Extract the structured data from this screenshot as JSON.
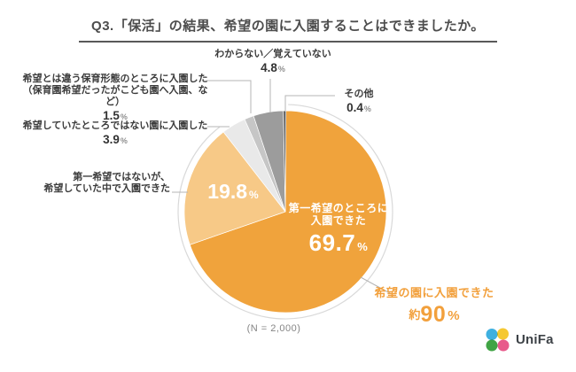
{
  "title": "Q3.「保活」の結果、希望の園に入園することはできましたか。",
  "note": "(N = 2,000)",
  "percent_sign": "%",
  "chart_data": {
    "type": "pie",
    "title": "Q3.「保活」の結果、希望の園に入園することはできましたか。",
    "sample_note": "(N = 2,000)",
    "direction": "clockwise",
    "start_angle_deg": 0,
    "segments": [
      {
        "label": "第一希望のところに入園できた",
        "label_lines": [
          "第一希望のところに",
          "入園できた"
        ],
        "value": 69.7,
        "color": "#F0A33C",
        "label_placement": "inside"
      },
      {
        "label": "第一希望ではないが、希望していた中で入園できた",
        "label_lines": [
          "第一希望ではないが、",
          "希望していた中で入園できた"
        ],
        "value": 19.8,
        "color": "#F7C987",
        "label_placement": "outside-left"
      },
      {
        "label": "希望していたところではない園に入園した",
        "label_lines": [
          "希望していたところではない園に入園した"
        ],
        "value": 3.9,
        "color": "#E9E9E9",
        "label_placement": "outside-left"
      },
      {
        "label": "希望とは違う保育形態のところに入園した（保育園希望だったがこども園へ入園、など）",
        "label_lines": [
          "希望とは違う保育形態のところに入園した",
          "（保育園希望だったがこども園へ入園、など）"
        ],
        "value": 1.5,
        "color": "#C6C6C6",
        "label_placement": "outside-left"
      },
      {
        "label": "わからない／覚えていない",
        "label_lines": [
          "わからない／覚えていない"
        ],
        "value": 4.8,
        "color": "#9C9C9C",
        "label_placement": "outside-top"
      },
      {
        "label": "その他",
        "label_lines": [
          "その他"
        ],
        "value": 0.4,
        "color": "#545454",
        "label_placement": "outside-top-right"
      }
    ],
    "group_annotation": {
      "label": "希望の園に入園できた",
      "value_prefix": "約",
      "value": "90",
      "segments_covered": [
        0,
        1
      ],
      "color": "#F2A03C"
    }
  },
  "logo": {
    "text": "UniFa",
    "dot_colors": [
      "#3FB0E0",
      "#F5C832",
      "#41A445",
      "#E85A8B"
    ]
  }
}
